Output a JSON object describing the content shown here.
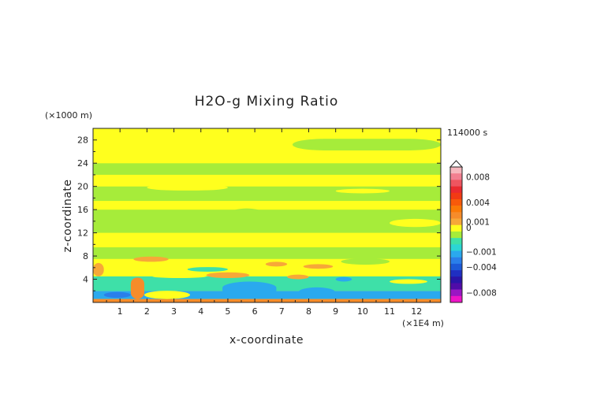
{
  "chart_data": {
    "type": "heatmap",
    "title": "H2O-g Mixing Ratio",
    "xlabel": "x-coordinate",
    "ylabel": "z-coordinate",
    "x_unit": "(×1E4 m)",
    "y_unit": "(×1000 m)",
    "time_label": "114000 s",
    "xlim": [
      0,
      12.9
    ],
    "ylim": [
      0,
      30
    ],
    "x_ticks": [
      "1",
      "2",
      "3",
      "4",
      "5",
      "6",
      "7",
      "8",
      "9",
      "10",
      "11",
      "12"
    ],
    "y_ticks": [
      "4",
      "8",
      "12",
      "16",
      "20",
      "24",
      "28"
    ],
    "background_value": 0.0005,
    "bands": [
      {
        "z0": 0.0,
        "z1": 0.6,
        "value": 0.002
      },
      {
        "z0": 0.6,
        "z1": 2.0,
        "value": -0.002
      },
      {
        "z0": 2.0,
        "z1": 4.5,
        "value": -0.0007
      },
      {
        "z0": 4.5,
        "z1": 7.5,
        "value": 0.0005
      },
      {
        "z0": 7.5,
        "z1": 9.5,
        "value": -0.0003
      },
      {
        "z0": 9.5,
        "z1": 12.0,
        "value": 0.0005
      },
      {
        "z0": 12.0,
        "z1": 16.0,
        "value": -0.0003
      },
      {
        "z0": 16.0,
        "z1": 17.5,
        "value": 0.0005
      },
      {
        "z0": 17.5,
        "z1": 20.0,
        "value": -0.0003
      },
      {
        "z0": 20.0,
        "z1": 22.0,
        "value": 0.0005
      },
      {
        "z0": 22.0,
        "z1": 24.0,
        "value": -0.0003
      },
      {
        "z0": 24.0,
        "z1": 30.0,
        "value": 0.0005
      }
    ],
    "patches": [
      {
        "x0": 0.0,
        "x1": 12.9,
        "z0": 28.2,
        "z1": 30.0,
        "value": 0.0005
      },
      {
        "x0": 7.4,
        "x1": 12.9,
        "z0": 26.2,
        "z1": 28.2,
        "value": -0.0003
      },
      {
        "x0": 10.5,
        "x1": 11.2,
        "z0": 26.8,
        "z1": 28.0,
        "value": -0.0003
      },
      {
        "x0": 2.0,
        "x1": 5.0,
        "z0": 19.3,
        "z1": 20.3,
        "value": 0.0005
      },
      {
        "x0": 9.0,
        "x1": 11.0,
        "z0": 18.8,
        "z1": 19.6,
        "value": 0.0005
      },
      {
        "x0": 5.2,
        "x1": 6.2,
        "z0": 15.2,
        "z1": 16.2,
        "value": -0.0003
      },
      {
        "x0": 11.0,
        "x1": 12.9,
        "z0": 13.0,
        "z1": 14.4,
        "value": 0.0005
      },
      {
        "x0": 1.5,
        "x1": 2.8,
        "z0": 7.0,
        "z1": 7.9,
        "value": 0.001
      },
      {
        "x0": 6.4,
        "x1": 7.2,
        "z0": 6.2,
        "z1": 7.0,
        "value": 0.001
      },
      {
        "x0": 7.8,
        "x1": 8.9,
        "z0": 5.8,
        "z1": 6.6,
        "value": 0.001
      },
      {
        "x0": 9.2,
        "x1": 11.0,
        "z0": 6.5,
        "z1": 7.6,
        "value": -0.0003
      },
      {
        "x0": 3.5,
        "x1": 5.0,
        "z0": 5.3,
        "z1": 6.1,
        "value": -0.0007
      },
      {
        "x0": 4.2,
        "x1": 5.8,
        "z0": 4.2,
        "z1": 5.2,
        "value": 0.001
      },
      {
        "x0": 2.2,
        "x1": 4.2,
        "z0": 4.2,
        "z1": 4.8,
        "value": 0.0005
      },
      {
        "x0": 7.2,
        "x1": 8.0,
        "z0": 4.0,
        "z1": 4.8,
        "value": 0.001
      },
      {
        "x0": 9.0,
        "x1": 9.6,
        "z0": 3.6,
        "z1": 4.4,
        "value": -0.002
      },
      {
        "x0": 11.0,
        "x1": 12.4,
        "z0": 3.2,
        "z1": 4.0,
        "value": 0.0005
      },
      {
        "x0": 4.8,
        "x1": 6.8,
        "z0": 1.0,
        "z1": 3.6,
        "value": -0.002
      },
      {
        "x0": 7.6,
        "x1": 9.0,
        "z0": 0.8,
        "z1": 2.6,
        "value": -0.002
      },
      {
        "x0": 0.4,
        "x1": 1.4,
        "z0": 0.8,
        "z1": 1.8,
        "value": -0.003
      },
      {
        "x0": 1.4,
        "x1": 1.9,
        "z0": 0.6,
        "z1": 4.3,
        "value": 0.002
      },
      {
        "x0": 1.9,
        "x1": 3.6,
        "z0": 0.6,
        "z1": 2.0,
        "value": 0.0005
      },
      {
        "x0": 10.0,
        "x1": 11.4,
        "z0": 0.9,
        "z1": 1.9,
        "value": -0.002
      },
      {
        "x0": 0.0,
        "x1": 0.4,
        "z0": 4.5,
        "z1": 6.8,
        "value": 0.001
      }
    ],
    "colorbar": {
      "tick_labels": [
        {
          "label": "0.008",
          "value": 0.008
        },
        {
          "label": "0.004",
          "value": 0.004
        },
        {
          "label": "0.001",
          "value": 0.001
        },
        {
          "label": "0",
          "value": 0
        },
        {
          "label": "−0.001",
          "value": -0.001
        },
        {
          "label": "−0.004",
          "value": -0.004
        },
        {
          "label": "−0.008",
          "value": -0.008
        }
      ],
      "levels": [
        {
          "value": 0.009,
          "color": "#f6b7bd"
        },
        {
          "value": 0.008,
          "color": "#f27f90"
        },
        {
          "value": 0.007,
          "color": "#ee5560"
        },
        {
          "value": 0.006,
          "color": "#ea2a30"
        },
        {
          "value": 0.005,
          "color": "#f23a14"
        },
        {
          "value": 0.004,
          "color": "#f85a0a"
        },
        {
          "value": 0.003,
          "color": "#fb7a06"
        },
        {
          "value": 0.002,
          "color": "#f68c2a"
        },
        {
          "value": 0.001,
          "color": "#f7a838"
        },
        {
          "value": 0.0005,
          "color": "#ffff1e"
        },
        {
          "value": -0.0003,
          "color": "#a6ec3a"
        },
        {
          "value": -0.0007,
          "color": "#3ee0a8"
        },
        {
          "value": -0.001,
          "color": "#2cd6d4"
        },
        {
          "value": -0.002,
          "color": "#2aa9ee"
        },
        {
          "value": -0.003,
          "color": "#2a7fea"
        },
        {
          "value": -0.004,
          "color": "#1c5ad8"
        },
        {
          "value": -0.005,
          "color": "#1f2fc2"
        },
        {
          "value": -0.006,
          "color": "#2a14a8"
        },
        {
          "value": -0.007,
          "color": "#4f0ca8"
        },
        {
          "value": -0.008,
          "color": "#9a16c4"
        },
        {
          "value": -0.009,
          "color": "#ee14c8"
        }
      ]
    }
  }
}
